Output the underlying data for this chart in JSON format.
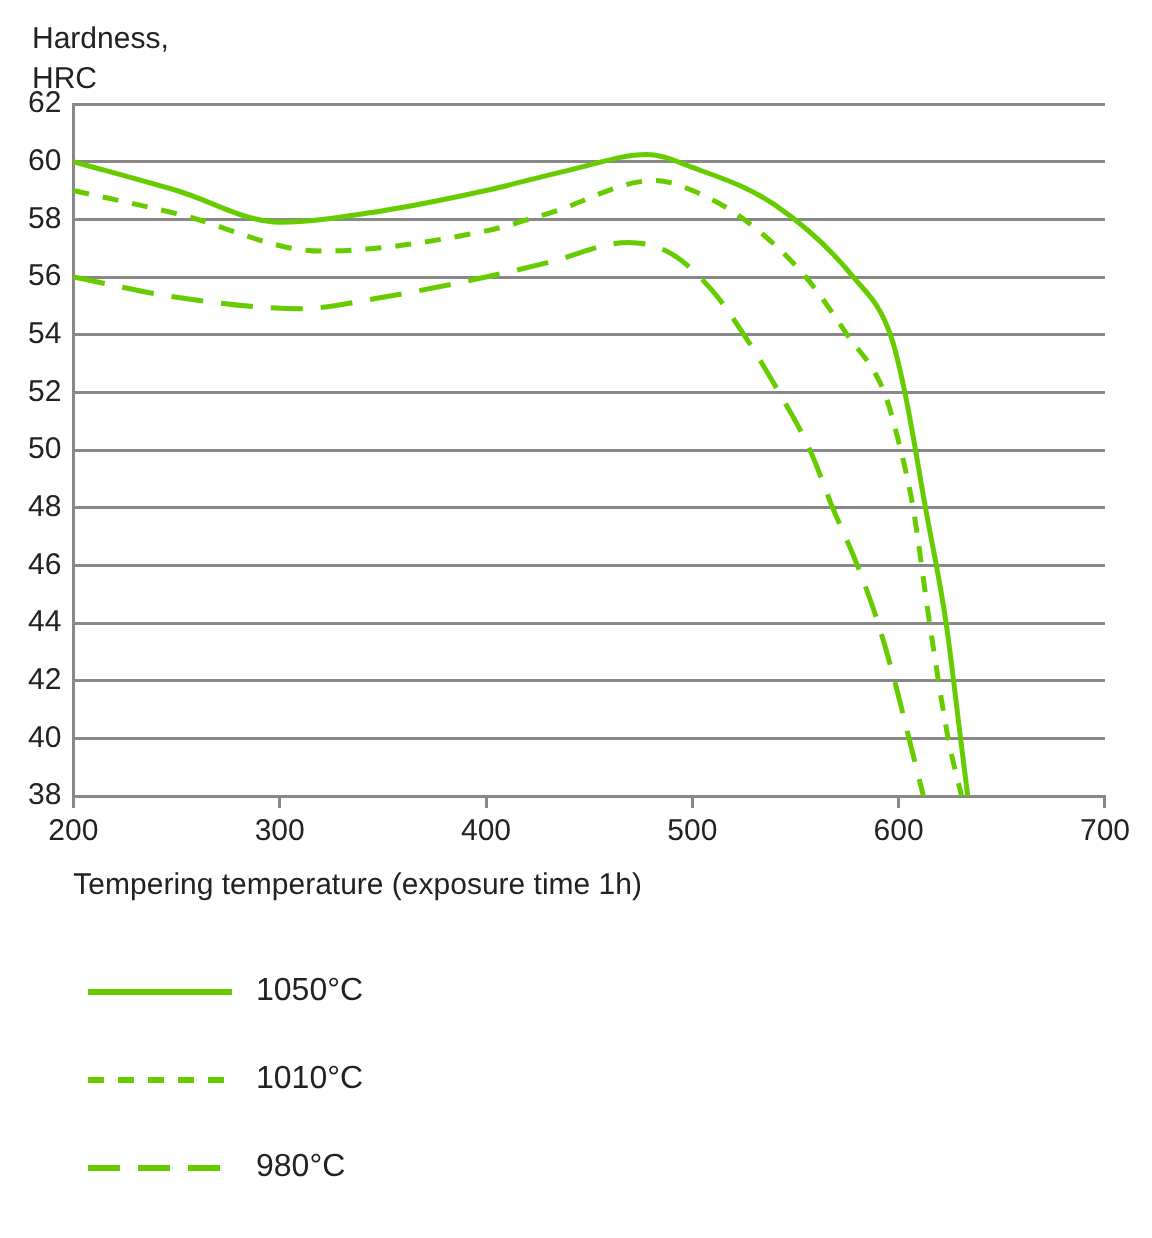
{
  "chart_data": {
    "type": "line",
    "ylabel": "Hardness, HRC",
    "xlabel": "Tempering temperature (exposure time 1h)",
    "xlim": [
      200,
      700
    ],
    "xticks": [
      200,
      300,
      400,
      500,
      600,
      700
    ],
    "ylim": [
      38,
      62
    ],
    "yticks": [
      38,
      40,
      42,
      44,
      46,
      48,
      50,
      52,
      54,
      56,
      58,
      60,
      62
    ],
    "grid": "y",
    "legend": "bottom",
    "marker": "none",
    "series": [
      {
        "name": "1050°C",
        "color": "#66cc00",
        "line_style": "solid",
        "x": [
          200,
          250,
          300,
          350,
          400,
          440,
          478,
          500,
          540,
          578,
          596,
          603,
          613,
          623,
          630,
          633.5
        ],
        "values": [
          60,
          59,
          57.9,
          58.3,
          59,
          59.7,
          60.25,
          59.8,
          58.5,
          56,
          54,
          52,
          48,
          44,
          40,
          38
        ]
      },
      {
        "name": "1010°C",
        "color": "#66cc00",
        "line_style": "dashed",
        "x": [
          200,
          250,
          320,
          400,
          430,
          482,
          500,
          525,
          555,
          575,
          593,
          601,
          607,
          615,
          624,
          630.5
        ],
        "values": [
          59,
          58.2,
          56.9,
          57.6,
          58.2,
          59.35,
          59,
          58,
          56,
          54,
          52,
          50,
          48,
          44,
          40,
          38
        ]
      },
      {
        "name": "980°C",
        "color": "#66cc00",
        "line_style": "dashed",
        "x": [
          200,
          250,
          310,
          350,
          400,
          430,
          469,
          490,
          510,
          525,
          542,
          557,
          568,
          580,
          590,
          598,
          605,
          612
        ],
        "values": [
          56,
          55.3,
          54.9,
          55.3,
          56,
          56.5,
          57.2,
          56.8,
          55.5,
          54,
          52,
          50,
          48,
          46,
          44,
          42,
          40,
          38
        ]
      }
    ]
  }
}
